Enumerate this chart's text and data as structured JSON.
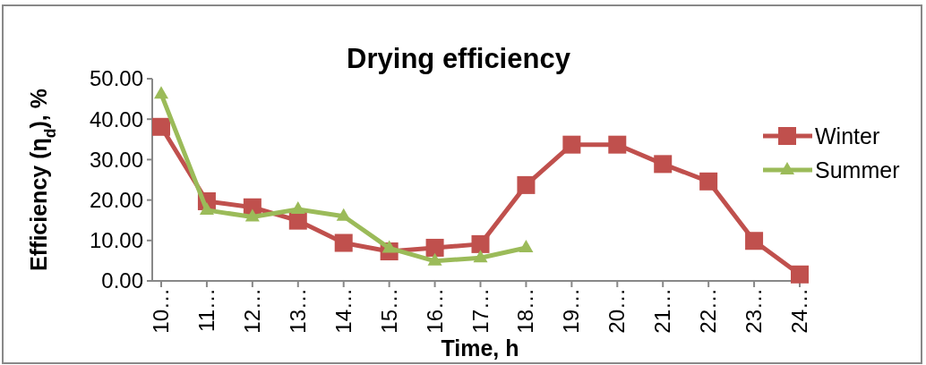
{
  "chart_data": {
    "type": "line",
    "title": "Drying efficiency",
    "xlabel": "Time, h",
    "ylabel": "Efficiency (η$_{d}$), %",
    "categories": [
      "10…",
      "11…",
      "12…",
      "13…",
      "14…",
      "15…",
      "16…",
      "17…",
      "18…",
      "19…",
      "20…",
      "21…",
      "22…",
      "23…",
      "24…"
    ],
    "series": [
      {
        "name": "Winter",
        "color": "#c0504d",
        "marker": "square",
        "values": [
          38.1,
          19.7,
          18.2,
          14.9,
          9.4,
          7.3,
          8.2,
          9.1,
          23.7,
          33.7,
          33.7,
          28.9,
          24.6,
          9.9,
          1.6
        ]
      },
      {
        "name": "Summer",
        "color": "#9bbb59",
        "marker": "triangle",
        "values": [
          46.2,
          17.5,
          15.8,
          17.7,
          16.0,
          8.1,
          4.9,
          5.7,
          8.2,
          null,
          null,
          null,
          null,
          null,
          null
        ]
      }
    ],
    "ylim": [
      0,
      50
    ],
    "yticks": [
      {
        "value": 0,
        "label": "0.00"
      },
      {
        "value": 10,
        "label": "10.00"
      },
      {
        "value": 20,
        "label": "20.00"
      },
      {
        "value": 30,
        "label": "30.00"
      },
      {
        "value": 40,
        "label": "40.00"
      },
      {
        "value": 50,
        "label": "50.00"
      }
    ],
    "grid": false,
    "legend": "right",
    "line_style": "solid"
  }
}
